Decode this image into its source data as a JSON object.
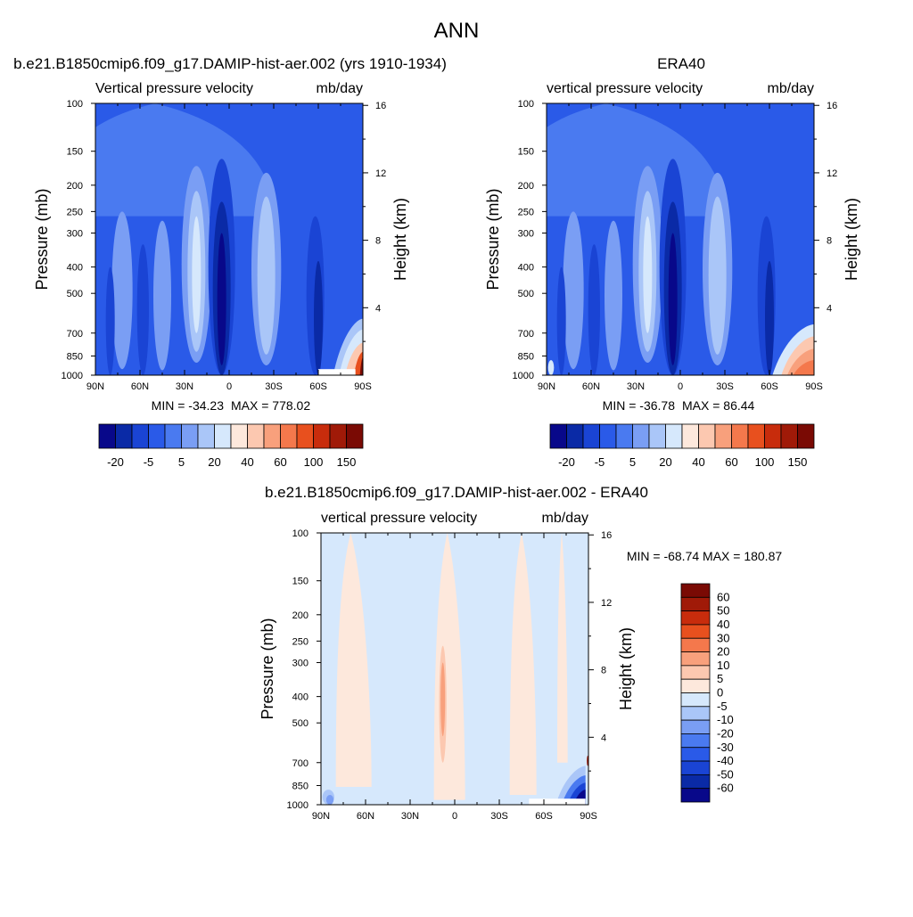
{
  "main_title": "ANN",
  "colors": {
    "model_obs_scale": [
      "#08088a",
      "#0a2aa6",
      "#1a44d4",
      "#2a5ae8",
      "#4a7af0",
      "#7a9ef4",
      "#aac6f8",
      "#d6e8fc",
      "#fde8dc",
      "#fcc8b0",
      "#f8a07c",
      "#f4784c",
      "#e8501e",
      "#c82c0c",
      "#a01a08",
      "#7a0a04"
    ],
    "diff_scale": [
      "#08088a",
      "#0a2aa6",
      "#1a44d4",
      "#2a5ae8",
      "#4a7af0",
      "#7a9ef4",
      "#aac6f8",
      "#d6e8fc",
      "#fde8dc",
      "#fcc8b0",
      "#f8a07c",
      "#f4784c",
      "#e8501e",
      "#c82c0c",
      "#a01a08",
      "#7a0a04"
    ]
  },
  "chart_data": [
    {
      "type": "heatmap",
      "panel": "model",
      "title": "b.e21.B1850cmip6.f09_g17.DAMIP-hist-aer.002 (yrs 1910-1934)",
      "left_string": "Vertical pressure velocity",
      "right_string": "mb/day",
      "x_tick_labels": [
        "90N",
        "60N",
        "30N",
        "0",
        "30S",
        "60S",
        "90S"
      ],
      "x_range": [
        90,
        -90
      ],
      "ylabel": "Pressure (mb)",
      "y_tick_labels": [
        "100",
        "150",
        "200",
        "250",
        "300",
        "400",
        "500",
        "700",
        "850",
        "1000"
      ],
      "y_range_mb": [
        1000,
        100
      ],
      "y_scale": "log",
      "y2label": "Height (km)",
      "y2_tick_labels": [
        "16",
        "12",
        "8",
        "4"
      ],
      "min_text": "MIN = -34.23",
      "max_text": "MAX = 778.02",
      "min": -34.23,
      "max": 778.02,
      "colorbar_orientation": "horizontal",
      "colorbar_tick_labels": [
        "-20",
        "-5",
        "5",
        "20",
        "40",
        "60",
        "100",
        "150"
      ]
    },
    {
      "type": "heatmap",
      "panel": "observations",
      "title": "ERA40",
      "left_string": "vertical pressure velocity",
      "right_string": "mb/day",
      "x_tick_labels": [
        "90N",
        "60N",
        "30N",
        "0",
        "30S",
        "60S",
        "90S"
      ],
      "x_range": [
        90,
        -90
      ],
      "ylabel": "Pressure (mb)",
      "y_tick_labels": [
        "100",
        "150",
        "200",
        "250",
        "300",
        "400",
        "500",
        "700",
        "850",
        "1000"
      ],
      "y_range_mb": [
        1000,
        100
      ],
      "y_scale": "log",
      "y2label": "Height (km)",
      "y2_tick_labels": [
        "16",
        "12",
        "8",
        "4"
      ],
      "min_text": "MIN = -36.78",
      "max_text": "MAX =  86.44",
      "min": -36.78,
      "max": 86.44,
      "colorbar_orientation": "horizontal",
      "colorbar_tick_labels": [
        "-20",
        "-5",
        "5",
        "20",
        "40",
        "60",
        "100",
        "150"
      ]
    },
    {
      "type": "heatmap",
      "panel": "difference",
      "title": "b.e21.B1850cmip6.f09_g17.DAMIP-hist-aer.002 - ERA40",
      "left_string": "vertical pressure velocity",
      "right_string": "mb/day",
      "x_tick_labels": [
        "90N",
        "60N",
        "30N",
        "0",
        "30S",
        "60S",
        "90S"
      ],
      "x_range": [
        90,
        -90
      ],
      "ylabel": "Pressure (mb)",
      "y_tick_labels": [
        "100",
        "150",
        "200",
        "250",
        "300",
        "400",
        "500",
        "700",
        "850",
        "1000"
      ],
      "y_range_mb": [
        1000,
        100
      ],
      "y_scale": "log",
      "y2label": "Height (km)",
      "y2_tick_labels": [
        "16",
        "12",
        "8",
        "4"
      ],
      "min_text": "MIN = -68.74",
      "max_text": "MAX = 180.87",
      "min": -68.74,
      "max": 180.87,
      "colorbar_orientation": "vertical",
      "colorbar_tick_labels": [
        "60",
        "50",
        "40",
        "30",
        "20",
        "10",
        "5",
        "0",
        "-5",
        "-10",
        "-20",
        "-30",
        "-40",
        "-50",
        "-60"
      ]
    }
  ]
}
